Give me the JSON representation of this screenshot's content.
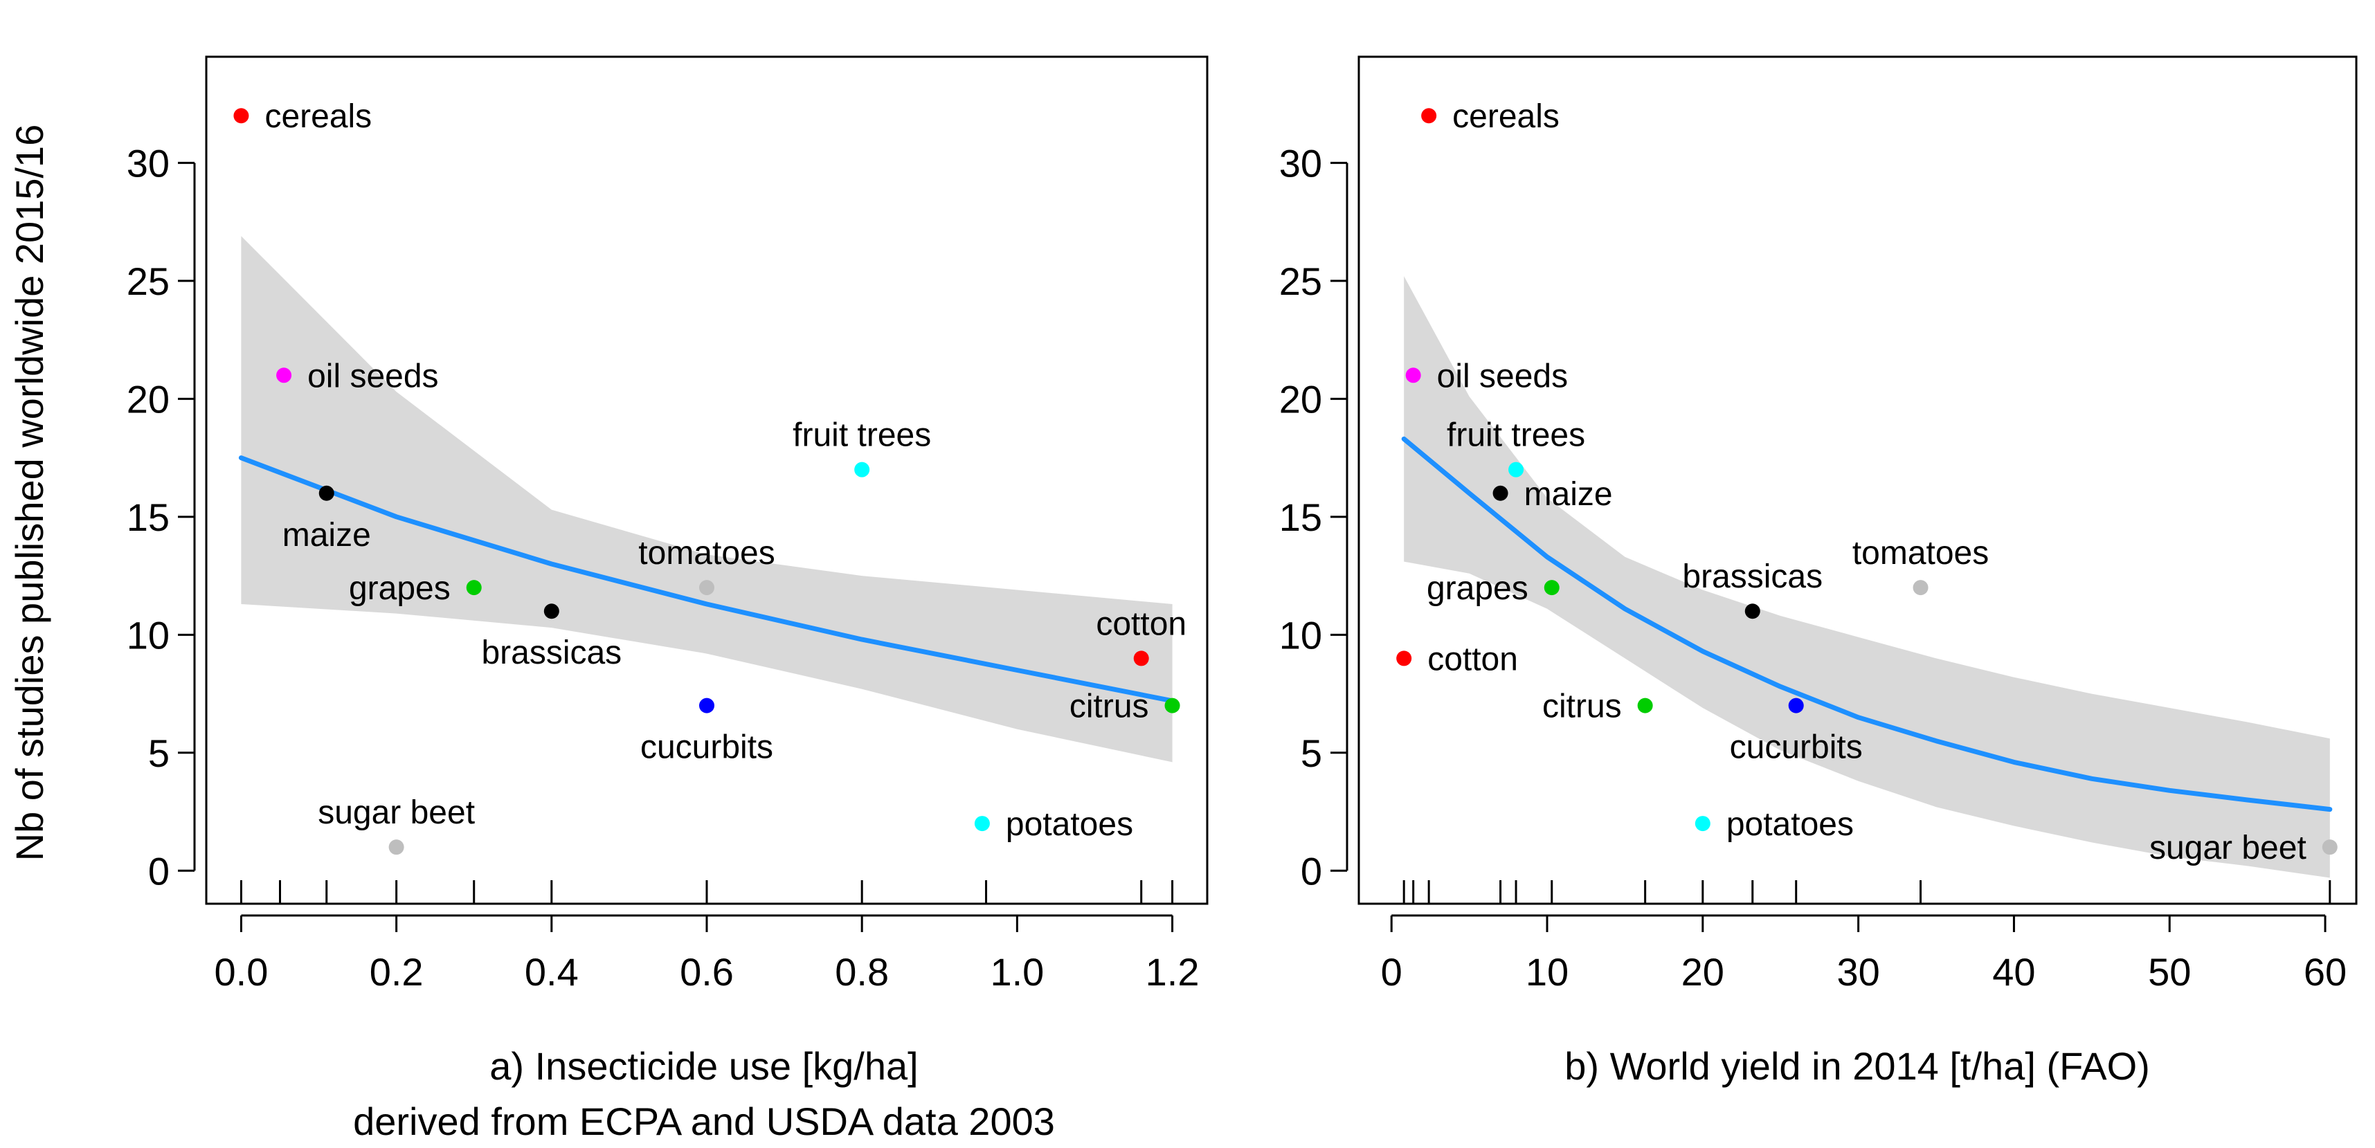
{
  "chart_data": {
    "ylabel": "Nb of studies published worldwide 2015/16",
    "panels": [
      {
        "type": "scatter",
        "xlabel": "a) Insecticide use [kg/ha]",
        "xlabel2": "derived from ECPA and USDA data 2003",
        "xlim": [
          -0.045,
          1.245
        ],
        "ylim": [
          -1.4,
          34.5
        ],
        "xticks": [
          "0.0",
          "0.2",
          "0.4",
          "0.6",
          "0.8",
          "1.0",
          "1.2"
        ],
        "xtick_values": [
          0,
          0.2,
          0.4,
          0.6,
          0.8,
          1.0,
          1.2
        ],
        "yticks": [
          "0",
          "5",
          "10",
          "15",
          "20",
          "25",
          "30"
        ],
        "ytick_values": [
          0,
          5,
          10,
          15,
          20,
          25,
          30
        ],
        "rug": [
          0.0,
          0.05,
          0.11,
          0.2,
          0.3,
          0.4,
          0.6,
          0.6,
          0.8,
          0.96,
          1.16,
          1.2
        ],
        "points": [
          {
            "label": "cereals",
            "x": 0.0,
            "y": 32,
            "color": "#ff0000",
            "label_pos": "right"
          },
          {
            "label": "oil seeds",
            "x": 0.055,
            "y": 21,
            "color": "#ff00ff",
            "label_pos": "right"
          },
          {
            "label": "maize",
            "x": 0.11,
            "y": 16,
            "color": "#000000",
            "label_pos": "below"
          },
          {
            "label": "grapes",
            "x": 0.3,
            "y": 12,
            "color": "#00cd00",
            "label_pos": "left"
          },
          {
            "label": "brassicas",
            "x": 0.4,
            "y": 11,
            "color": "#000000",
            "label_pos": "below"
          },
          {
            "label": "sugar beet",
            "x": 0.2,
            "y": 1,
            "color": "#bebebe",
            "label_pos": "above"
          },
          {
            "label": "tomatoes",
            "x": 0.6,
            "y": 12,
            "color": "#bebebe",
            "label_pos": "above"
          },
          {
            "label": "cucurbits",
            "x": 0.6,
            "y": 7,
            "color": "#0000ff",
            "label_pos": "below"
          },
          {
            "label": "fruit trees",
            "x": 0.8,
            "y": 17,
            "color": "#00ffff",
            "label_pos": "above"
          },
          {
            "label": "potatoes",
            "x": 0.955,
            "y": 2,
            "color": "#00ffff",
            "label_pos": "right"
          },
          {
            "label": "cotton",
            "x": 1.16,
            "y": 9,
            "color": "#ff0000",
            "label_pos": "above"
          },
          {
            "label": "citrus",
            "x": 1.2,
            "y": 7,
            "color": "#00cd00",
            "label_pos": "left"
          }
        ],
        "fit": {
          "x": [
            0,
            0.2,
            0.4,
            0.6,
            0.8,
            1.0,
            1.2
          ],
          "y": [
            17.5,
            15.0,
            13.0,
            11.3,
            9.8,
            8.5,
            7.2
          ],
          "ci_upper": [
            26.9,
            20.3,
            15.3,
            13.4,
            12.5,
            11.9,
            11.3
          ],
          "ci_lower": [
            11.3,
            10.9,
            10.3,
            9.2,
            7.7,
            6.0,
            4.6
          ],
          "line_color": "#1e90ff",
          "band_color": "#d9d9d9"
        }
      },
      {
        "type": "scatter",
        "xlabel": "b) World yield in 2014 [t/ha] (FAO)",
        "xlim": [
          -2.1,
          62.0
        ],
        "ylim": [
          -1.4,
          34.5
        ],
        "xticks": [
          "0",
          "10",
          "20",
          "30",
          "40",
          "50",
          "60"
        ],
        "xtick_values": [
          0,
          10,
          20,
          30,
          40,
          50,
          60
        ],
        "yticks": [
          "0",
          "5",
          "10",
          "15",
          "20",
          "25",
          "30"
        ],
        "ytick_values": [
          0,
          5,
          10,
          15,
          20,
          25,
          30
        ],
        "rug": [
          0.8,
          1.4,
          2.4,
          7.0,
          8.0,
          10.3,
          16.3,
          20.0,
          23.2,
          26.0,
          34.0,
          60.3
        ],
        "points": [
          {
            "label": "cereals",
            "x": 2.4,
            "y": 32,
            "color": "#ff0000",
            "label_pos": "right"
          },
          {
            "label": "oil seeds",
            "x": 1.4,
            "y": 21,
            "color": "#ff00ff",
            "label_pos": "right"
          },
          {
            "label": "fruit trees",
            "x": 8.0,
            "y": 17,
            "color": "#00ffff",
            "label_pos": "above"
          },
          {
            "label": "maize",
            "x": 7.0,
            "y": 16,
            "color": "#000000",
            "label_pos": "right"
          },
          {
            "label": "grapes",
            "x": 10.3,
            "y": 12,
            "color": "#00cd00",
            "label_pos": "left"
          },
          {
            "label": "brassicas",
            "x": 23.2,
            "y": 11,
            "color": "#000000",
            "label_pos": "above"
          },
          {
            "label": "tomatoes",
            "x": 34.0,
            "y": 12,
            "color": "#bebebe",
            "label_pos": "above"
          },
          {
            "label": "cotton",
            "x": 0.8,
            "y": 9,
            "color": "#ff0000",
            "label_pos": "right"
          },
          {
            "label": "citrus",
            "x": 16.3,
            "y": 7,
            "color": "#00cd00",
            "label_pos": "left"
          },
          {
            "label": "cucurbits",
            "x": 26.0,
            "y": 7,
            "color": "#0000ff",
            "label_pos": "below"
          },
          {
            "label": "potatoes",
            "x": 20.0,
            "y": 2,
            "color": "#00ffff",
            "label_pos": "right"
          },
          {
            "label": "sugar beet",
            "x": 60.3,
            "y": 1,
            "color": "#bebebe",
            "label_pos": "left"
          }
        ],
        "fit": {
          "x": [
            0.8,
            5,
            10,
            15,
            20,
            25,
            30,
            35,
            40,
            45,
            50,
            55,
            60.3
          ],
          "y": [
            18.3,
            16.0,
            13.3,
            11.1,
            9.3,
            7.8,
            6.5,
            5.5,
            4.6,
            3.9,
            3.4,
            3.0,
            2.6
          ],
          "ci_upper": [
            25.2,
            20.1,
            15.8,
            13.3,
            11.9,
            10.8,
            9.9,
            9.0,
            8.2,
            7.5,
            6.9,
            6.3,
            5.6
          ],
          "ci_lower": [
            13.1,
            12.6,
            11.1,
            9.0,
            6.9,
            5.1,
            3.8,
            2.7,
            1.9,
            1.2,
            0.6,
            0.2,
            -0.3
          ],
          "line_color": "#1e90ff",
          "band_color": "#d9d9d9"
        }
      }
    ]
  }
}
